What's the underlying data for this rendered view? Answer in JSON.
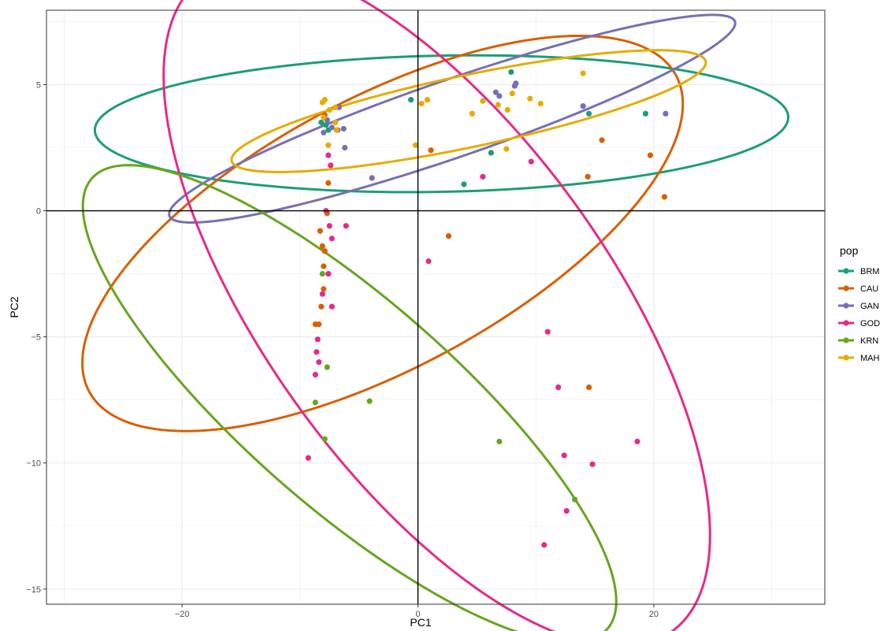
{
  "chart_data": {
    "type": "scatter",
    "xlabel": "PC1",
    "ylabel": "PC2",
    "xlim": [
      -31.5,
      34.5
    ],
    "ylim": [
      -15.6,
      7.95
    ],
    "x_ticks": [
      -20,
      0,
      20
    ],
    "y_ticks": [
      -15,
      -10,
      -5,
      0,
      5
    ],
    "x_tick_labels": [
      "−20",
      "0",
      "20"
    ],
    "y_tick_labels": [
      "−15",
      "−10",
      "−5",
      "0",
      "5"
    ],
    "grid": true,
    "zero_lines": true,
    "legend": {
      "title": "pop",
      "placement": "right"
    },
    "series": [
      {
        "name": "BRM",
        "color": "#1B9E77",
        "points": [
          [
            -8.2,
            3.5
          ],
          [
            -7.8,
            3.4
          ],
          [
            -7.6,
            3.2
          ],
          [
            -0.6,
            4.4
          ],
          [
            3.9,
            1.05
          ],
          [
            6.2,
            2.3
          ],
          [
            7.9,
            5.5
          ],
          [
            14.5,
            3.85
          ],
          [
            19.3,
            3.85
          ]
        ],
        "ellipse": {
          "cx": 2.0,
          "cy": 3.45,
          "rx": 29.4,
          "ry": 2.7,
          "angle": 0.5
        }
      },
      {
        "name": "CAU",
        "color": "#D95F02",
        "points": [
          [
            -7.9,
            3.8
          ],
          [
            -7.6,
            1.1
          ],
          [
            -7.7,
            -0.1
          ],
          [
            -8.3,
            -0.8
          ],
          [
            -8.1,
            -1.4
          ],
          [
            -7.9,
            -1.6
          ],
          [
            -8.0,
            -2.2
          ],
          [
            -8.0,
            -3.1
          ],
          [
            -8.2,
            -3.8
          ],
          [
            -8.7,
            -4.5
          ],
          [
            -8.4,
            -4.5
          ],
          [
            1.1,
            2.4
          ],
          [
            2.6,
            -1.0
          ],
          [
            15.6,
            2.8
          ],
          [
            14.4,
            1.35
          ],
          [
            19.7,
            2.2
          ],
          [
            20.9,
            0.55
          ],
          [
            14.5,
            -7.0
          ]
        ],
        "ellipse": {
          "cx": -3.0,
          "cy": -0.9,
          "rx": 26.0,
          "ry": 5.8,
          "angle": 12.0
        }
      },
      {
        "name": "GAN",
        "color": "#7570B3",
        "points": [
          [
            -8.0,
            3.1
          ],
          [
            -7.7,
            3.6
          ],
          [
            -7.3,
            3.3
          ],
          [
            -6.8,
            3.2
          ],
          [
            -6.7,
            4.1
          ],
          [
            -6.2,
            2.5
          ],
          [
            -6.3,
            3.25
          ],
          [
            -3.9,
            1.3
          ],
          [
            6.6,
            4.7
          ],
          [
            6.9,
            4.55
          ],
          [
            8.2,
            4.95
          ],
          [
            8.3,
            5.05
          ],
          [
            14.0,
            4.15
          ],
          [
            21.0,
            3.85
          ]
        ],
        "ellipse": {
          "cx": 2.9,
          "cy": 3.65,
          "rx": 24.3,
          "ry": 1.6,
          "angle": 9.0
        }
      },
      {
        "name": "GOD",
        "color": "#E7298A",
        "points": [
          [
            -7.8,
            0.0
          ],
          [
            -7.5,
            -0.6
          ],
          [
            -6.1,
            -0.6
          ],
          [
            -7.3,
            -1.1
          ],
          [
            -7.6,
            -2.5
          ],
          [
            -7.3,
            -3.8
          ],
          [
            -8.1,
            -3.3
          ],
          [
            -8.5,
            -5.1
          ],
          [
            -8.6,
            -5.6
          ],
          [
            -8.4,
            -6.0
          ],
          [
            -8.7,
            -6.5
          ],
          [
            -9.3,
            -9.8
          ],
          [
            -7.4,
            1.8
          ],
          [
            -7.6,
            2.2
          ],
          [
            0.9,
            -2.0
          ],
          [
            5.5,
            1.35
          ],
          [
            9.6,
            1.95
          ],
          [
            11.0,
            -4.8
          ],
          [
            11.9,
            -7.0
          ],
          [
            12.4,
            -9.7
          ],
          [
            12.6,
            -11.9
          ],
          [
            14.8,
            -10.05
          ],
          [
            18.6,
            -9.15
          ],
          [
            10.7,
            -13.25
          ]
        ],
        "ellipse": {
          "cx": 1.6,
          "cy": -3.75,
          "rx": 25.2,
          "ry": 9.2,
          "angle": -25.0
        }
      },
      {
        "name": "KRN",
        "color": "#66A61E",
        "points": [
          [
            -8.1,
            -2.5
          ],
          [
            -7.7,
            -6.2
          ],
          [
            -8.7,
            -7.6
          ],
          [
            -7.9,
            -9.05
          ],
          [
            -4.1,
            -7.55
          ],
          [
            6.9,
            -9.15
          ],
          [
            13.3,
            -11.45
          ]
        ],
        "ellipse": {
          "cx": -5.8,
          "cy": -7.65,
          "rx": 24.0,
          "ry": 5.0,
          "angle": -20.0
        }
      },
      {
        "name": "MAH",
        "color": "#E6AB02",
        "points": [
          [
            -8.1,
            4.3
          ],
          [
            -7.9,
            4.4
          ],
          [
            -7.5,
            4.0
          ],
          [
            -7.0,
            3.5
          ],
          [
            -8.0,
            3.7
          ],
          [
            -7.0,
            4.1
          ],
          [
            -6.9,
            3.2
          ],
          [
            -7.6,
            2.6
          ],
          [
            -0.2,
            2.6
          ],
          [
            0.3,
            4.25
          ],
          [
            0.8,
            4.4
          ],
          [
            4.6,
            3.85
          ],
          [
            5.5,
            4.35
          ],
          [
            6.8,
            4.2
          ],
          [
            7.5,
            2.45
          ],
          [
            7.6,
            4.0
          ],
          [
            8.0,
            4.65
          ],
          [
            9.5,
            4.45
          ],
          [
            10.4,
            4.25
          ],
          [
            14.0,
            5.45
          ]
        ],
        "ellipse": {
          "cx": 4.3,
          "cy": 3.95,
          "rx": 20.2,
          "ry": 1.45,
          "angle": 5.5
        }
      }
    ]
  }
}
